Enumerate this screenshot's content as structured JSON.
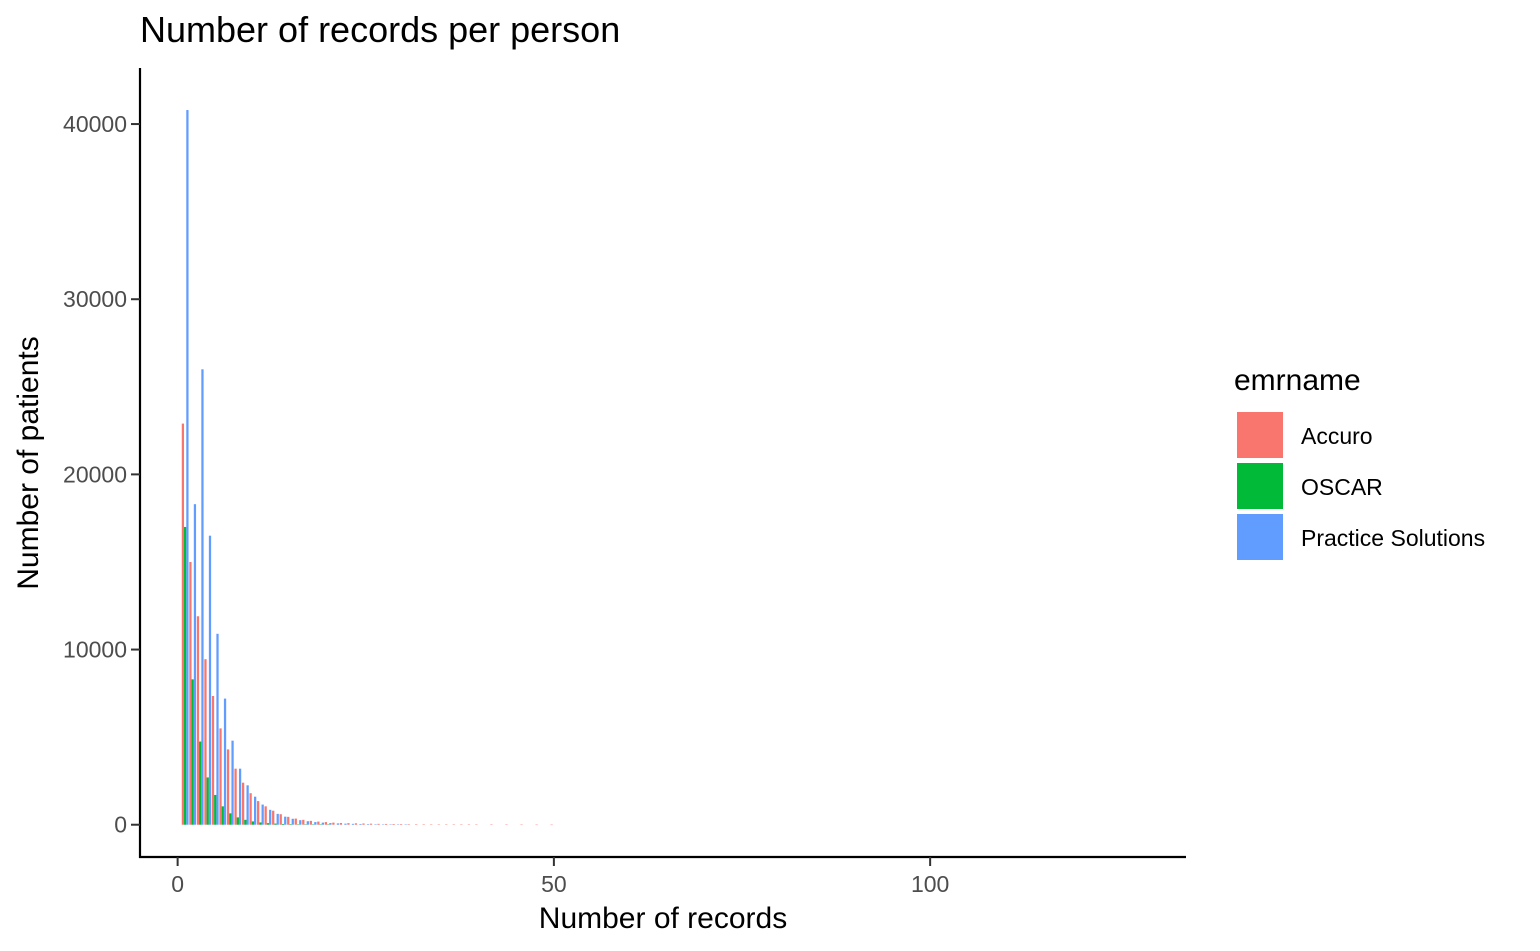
{
  "chart_data": {
    "type": "bar",
    "title": "Number of records per person",
    "xlabel": "Number of records",
    "ylabel": "Number of patients",
    "xlim": [
      -5,
      134
    ],
    "ylim": [
      -1900,
      43200
    ],
    "x_ticks": [
      0,
      50,
      100
    ],
    "y_ticks": [
      0,
      10000,
      20000,
      30000,
      40000
    ],
    "grid": false,
    "legend_position": "right",
    "legend_title": "emrname",
    "series": [
      {
        "name": "Accuro",
        "color": "#F8766D",
        "x": [
          1,
          2,
          3,
          4,
          5,
          6,
          7,
          8,
          9,
          10,
          11,
          12,
          13,
          14,
          15,
          16,
          17,
          18,
          19,
          20,
          21,
          22,
          23,
          24,
          25,
          26,
          27,
          28,
          29,
          30,
          31,
          32,
          33,
          34,
          35,
          36,
          37,
          38,
          39,
          40,
          42,
          44,
          46,
          48,
          50
        ],
        "values": [
          22900,
          15000,
          11900,
          9450,
          7350,
          5500,
          4300,
          3200,
          2400,
          1800,
          1350,
          1050,
          800,
          600,
          450,
          350,
          280,
          220,
          180,
          150,
          120,
          100,
          90,
          80,
          70,
          60,
          50,
          45,
          40,
          35,
          30,
          28,
          25,
          22,
          20,
          18,
          16,
          14,
          12,
          10,
          8,
          6,
          5,
          4,
          3
        ]
      },
      {
        "name": "OSCAR",
        "color": "#00BA38",
        "x": [
          1,
          2,
          3,
          4,
          5,
          6,
          7,
          8,
          9,
          10,
          11,
          12,
          13,
          14,
          15,
          16,
          17,
          18,
          19,
          20
        ],
        "values": [
          17000,
          8300,
          4750,
          2700,
          1700,
          1050,
          650,
          420,
          280,
          190,
          130,
          90,
          65,
          45,
          32,
          24,
          18,
          13,
          10,
          8
        ]
      },
      {
        "name": "Practice Solutions",
        "color": "#619CFF",
        "x": [
          1,
          2,
          3,
          4,
          5,
          6,
          7,
          8,
          9,
          10,
          11,
          12,
          13,
          14,
          15,
          16,
          17,
          18,
          19,
          20,
          21,
          22,
          23,
          24,
          25,
          26,
          27,
          28,
          29,
          30
        ],
        "values": [
          40800,
          18300,
          26000,
          16500,
          10900,
          7200,
          4800,
          3200,
          2250,
          1600,
          1150,
          850,
          620,
          460,
          340,
          260,
          200,
          150,
          120,
          95,
          75,
          60,
          50,
          40,
          33,
          27,
          22,
          18,
          15,
          12
        ]
      }
    ]
  }
}
